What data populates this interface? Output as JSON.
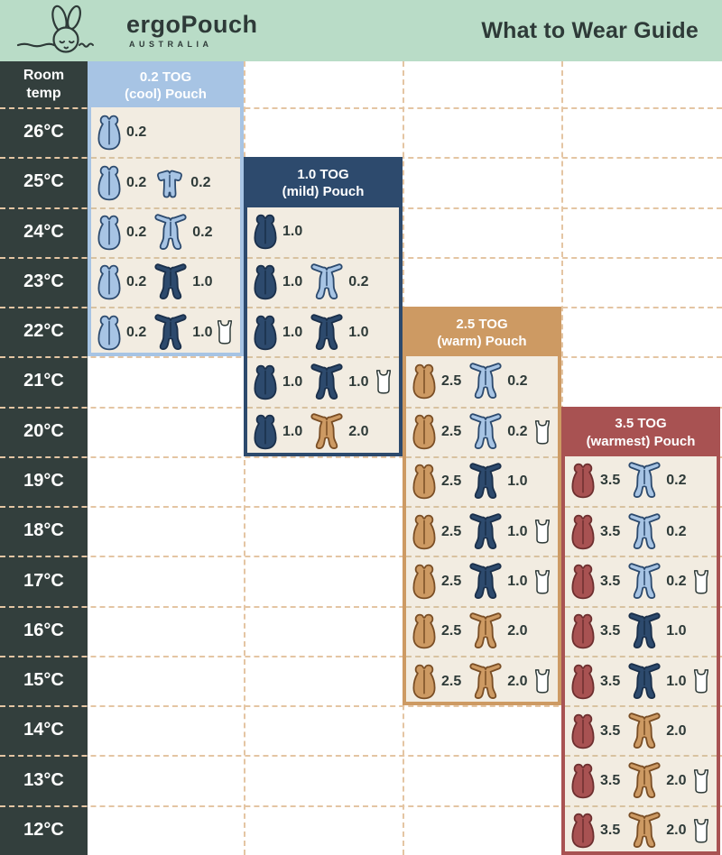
{
  "header": {
    "brand": "ergoPouch",
    "brand_sub": "AUSTRALIA",
    "title": "What to Wear Guide"
  },
  "temp_column": {
    "header_lines": [
      "Room",
      "temp"
    ]
  },
  "colors": {
    "mint": "#b9dcc7",
    "charcoal": "#333f3d",
    "cream": "#f2ece1",
    "ink": "#2e3a38",
    "white": "#ffffff",
    "grid": "#e4c5a3",
    "panel_dash": "#d8c2a0",
    "lightblue": "#a7c4e4",
    "lightblue_dark": "#2c4a6e",
    "navy": "#2d4a6d",
    "navy_dark": "#1a2f4a",
    "tan": "#cd9a63",
    "tan_dark": "#7a4e25",
    "red": "#a85252",
    "red_dark": "#6d2f2f"
  },
  "chart_data": {
    "type": "table",
    "title": "What to Wear Guide",
    "row_axis_label": "Room temp",
    "temperatures": [
      "26°C",
      "25°C",
      "24°C",
      "23°C",
      "22°C",
      "21°C",
      "20°C",
      "19°C",
      "18°C",
      "17°C",
      "16°C",
      "15°C",
      "14°C",
      "13°C",
      "12°C"
    ],
    "suit_color_by_tog": {
      "0.2": "lightblue",
      "1.0": "navy",
      "2.0": "tan"
    },
    "panels": [
      {
        "tog": "0.2",
        "title_line1": "0.2 TOG",
        "title_line2": "(cool) Pouch",
        "color": "lightblue",
        "rows": [
          {
            "temp": "26°C",
            "pouch_tog": "0.2",
            "suit_tog": null,
            "suit_style": null,
            "singlet": false
          },
          {
            "temp": "25°C",
            "pouch_tog": "0.2",
            "suit_tog": "0.2",
            "suit_style": "short",
            "singlet": false
          },
          {
            "temp": "24°C",
            "pouch_tog": "0.2",
            "suit_tog": "0.2",
            "suit_style": "long",
            "singlet": false
          },
          {
            "temp": "23°C",
            "pouch_tog": "0.2",
            "suit_tog": "1.0",
            "suit_style": "long",
            "singlet": false
          },
          {
            "temp": "22°C",
            "pouch_tog": "0.2",
            "suit_tog": "1.0",
            "suit_style": "long",
            "singlet": true
          }
        ]
      },
      {
        "tog": "1.0",
        "title_line1": "1.0 TOG",
        "title_line2": "(mild) Pouch",
        "color": "navy",
        "rows": [
          {
            "temp": "24°C",
            "pouch_tog": "1.0",
            "suit_tog": null,
            "suit_style": null,
            "singlet": false
          },
          {
            "temp": "23°C",
            "pouch_tog": "1.0",
            "suit_tog": "0.2",
            "suit_style": "long",
            "singlet": false
          },
          {
            "temp": "22°C",
            "pouch_tog": "1.0",
            "suit_tog": "1.0",
            "suit_style": "long",
            "singlet": false
          },
          {
            "temp": "21°C",
            "pouch_tog": "1.0",
            "suit_tog": "1.0",
            "suit_style": "long",
            "singlet": true
          },
          {
            "temp": "20°C",
            "pouch_tog": "1.0",
            "suit_tog": "2.0",
            "suit_style": "long",
            "singlet": false
          }
        ]
      },
      {
        "tog": "2.5",
        "title_line1": "2.5 TOG",
        "title_line2": "(warm) Pouch",
        "color": "tan",
        "rows": [
          {
            "temp": "21°C",
            "pouch_tog": "2.5",
            "suit_tog": "0.2",
            "suit_style": "long",
            "singlet": false
          },
          {
            "temp": "20°C",
            "pouch_tog": "2.5",
            "suit_tog": "0.2",
            "suit_style": "long",
            "singlet": true
          },
          {
            "temp": "19°C",
            "pouch_tog": "2.5",
            "suit_tog": "1.0",
            "suit_style": "long",
            "singlet": false
          },
          {
            "temp": "18°C",
            "pouch_tog": "2.5",
            "suit_tog": "1.0",
            "suit_style": "long",
            "singlet": true
          },
          {
            "temp": "17°C",
            "pouch_tog": "2.5",
            "suit_tog": "1.0",
            "suit_style": "long",
            "singlet": true
          },
          {
            "temp": "16°C",
            "pouch_tog": "2.5",
            "suit_tog": "2.0",
            "suit_style": "long",
            "singlet": false
          },
          {
            "temp": "15°C",
            "pouch_tog": "2.5",
            "suit_tog": "2.0",
            "suit_style": "long",
            "singlet": true
          }
        ]
      },
      {
        "tog": "3.5",
        "title_line1": "3.5 TOG",
        "title_line2": "(warmest) Pouch",
        "color": "red",
        "rows": [
          {
            "temp": "19°C",
            "pouch_tog": "3.5",
            "suit_tog": "0.2",
            "suit_style": "long",
            "singlet": false
          },
          {
            "temp": "18°C",
            "pouch_tog": "3.5",
            "suit_tog": "0.2",
            "suit_style": "long",
            "singlet": false
          },
          {
            "temp": "17°C",
            "pouch_tog": "3.5",
            "suit_tog": "0.2",
            "suit_style": "long",
            "singlet": true
          },
          {
            "temp": "16°C",
            "pouch_tog": "3.5",
            "suit_tog": "1.0",
            "suit_style": "long",
            "singlet": false
          },
          {
            "temp": "15°C",
            "pouch_tog": "3.5",
            "suit_tog": "1.0",
            "suit_style": "long",
            "singlet": true
          },
          {
            "temp": "14°C",
            "pouch_tog": "3.5",
            "suit_tog": "2.0",
            "suit_style": "long",
            "singlet": false
          },
          {
            "temp": "13°C",
            "pouch_tog": "3.5",
            "suit_tog": "2.0",
            "suit_style": "long",
            "singlet": true
          },
          {
            "temp": "12°C",
            "pouch_tog": "3.5",
            "suit_tog": "2.0",
            "suit_style": "long",
            "singlet": true
          }
        ]
      }
    ]
  }
}
